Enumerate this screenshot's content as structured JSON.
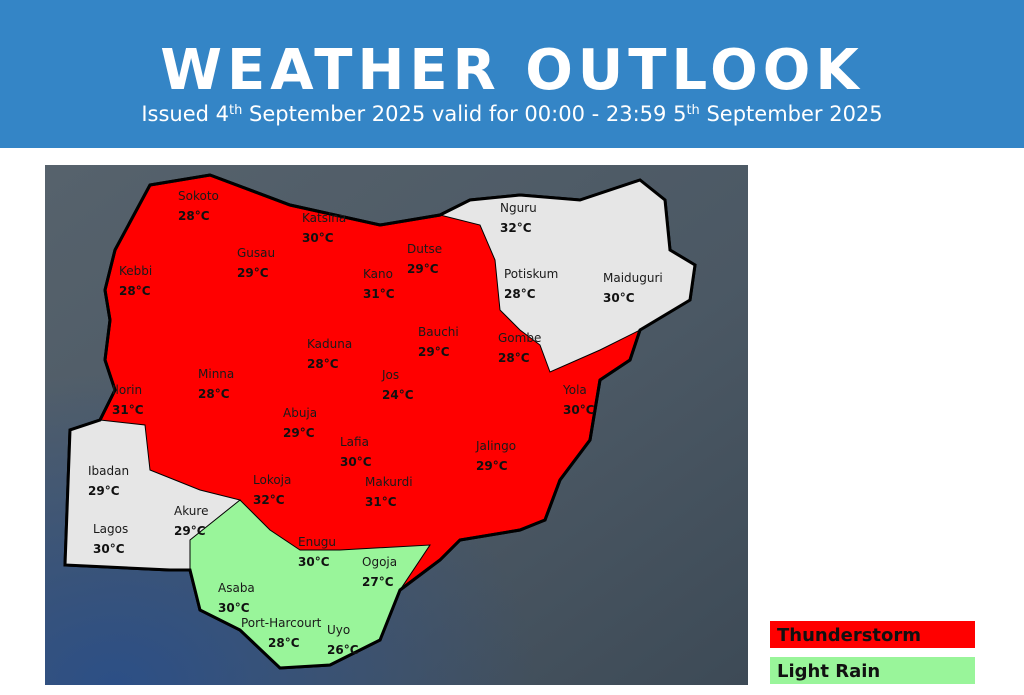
{
  "header": {
    "title": "WEATHER OUTLOOK",
    "subtitle": [
      {
        "text": "Issued 4",
        "sup": false
      },
      {
        "text": "th",
        "sup": true
      },
      {
        "text": " September 2025 valid for 00:00 - 23:59 5",
        "sup": false
      },
      {
        "text": "th",
        "sup": true
      },
      {
        "text": " September 2025",
        "sup": false
      }
    ]
  },
  "cities": [
    {
      "name": "Sokoto",
      "temp": "28°C"
    },
    {
      "name": "Katsina",
      "temp": "30°C"
    },
    {
      "name": "Gusau",
      "temp": "29°C"
    },
    {
      "name": "Dutse",
      "temp": "29°C"
    },
    {
      "name": "Kebbi",
      "temp": "28°C"
    },
    {
      "name": "Kano",
      "temp": "31°C"
    },
    {
      "name": "Nguru",
      "temp": "32°C"
    },
    {
      "name": "Potiskum",
      "temp": "28°C"
    },
    {
      "name": "Maiduguri",
      "temp": "30°C"
    },
    {
      "name": "Bauchi",
      "temp": "29°C"
    },
    {
      "name": "Gombe",
      "temp": "28°C"
    },
    {
      "name": "Kaduna",
      "temp": "28°C"
    },
    {
      "name": "Minna",
      "temp": "28°C"
    },
    {
      "name": "Jos",
      "temp": "24°C"
    },
    {
      "name": "Yola",
      "temp": "30°C"
    },
    {
      "name": "Ilorin",
      "temp": "31°C"
    },
    {
      "name": "Abuja",
      "temp": "29°C"
    },
    {
      "name": "Lafia",
      "temp": "30°C"
    },
    {
      "name": "Jalingo",
      "temp": "29°C"
    },
    {
      "name": "Ibadan",
      "temp": "29°C"
    },
    {
      "name": "Lokoja",
      "temp": "32°C"
    },
    {
      "name": "Makurdi",
      "temp": "31°C"
    },
    {
      "name": "Akure",
      "temp": "29°C"
    },
    {
      "name": "Lagos",
      "temp": "30°C"
    },
    {
      "name": "Enugu",
      "temp": "30°C"
    },
    {
      "name": "Ogoja",
      "temp": "27°C"
    },
    {
      "name": "Asaba",
      "temp": "30°C"
    },
    {
      "name": "Port-Harcourt",
      "temp": "28°C"
    },
    {
      "name": "Uyo",
      "temp": "26°C"
    }
  ],
  "legend": [
    {
      "label": "Thunderstorm",
      "color": "#ff0000"
    },
    {
      "label": "Light Rain",
      "color": "#99f59a"
    }
  ]
}
